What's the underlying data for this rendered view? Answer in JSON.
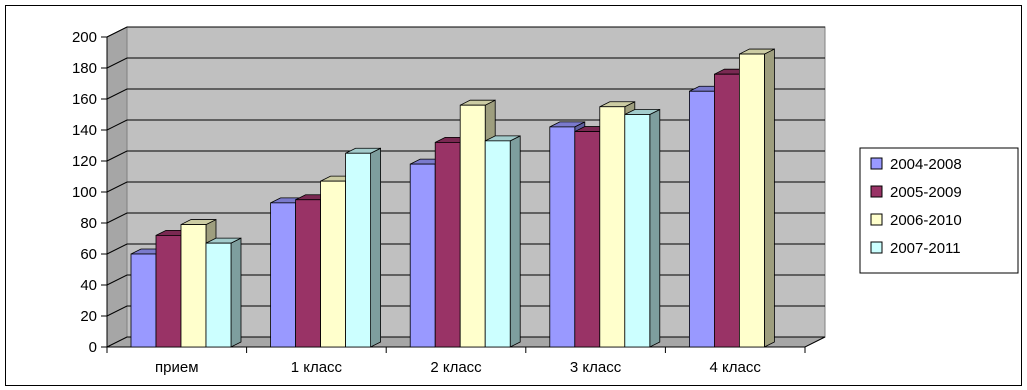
{
  "chart_data": {
    "type": "bar",
    "categories": [
      "прием",
      "1 класс",
      "2 класс",
      "3 класс",
      "4 класс"
    ],
    "series": [
      {
        "name": "2004-2008",
        "color": "#9999ff",
        "values": [
          60,
          93,
          118,
          142,
          165
        ]
      },
      {
        "name": "2005-2009",
        "color": "#993366",
        "values": [
          72,
          95,
          132,
          139,
          176
        ]
      },
      {
        "name": "2006-2010",
        "color": "#ffffcc",
        "values": [
          79,
          107,
          156,
          155,
          189
        ]
      },
      {
        "name": "2007-2011",
        "color": "#ccffff",
        "values": [
          67,
          125,
          133,
          150,
          null
        ]
      }
    ],
    "ylim": [
      0,
      200
    ],
    "yticks": [
      "0",
      "20",
      "40",
      "60",
      "80",
      "100",
      "120",
      "140",
      "160",
      "180",
      "200"
    ],
    "grid": true,
    "wall_color": "#c0c0c0",
    "legend_position": "right"
  }
}
